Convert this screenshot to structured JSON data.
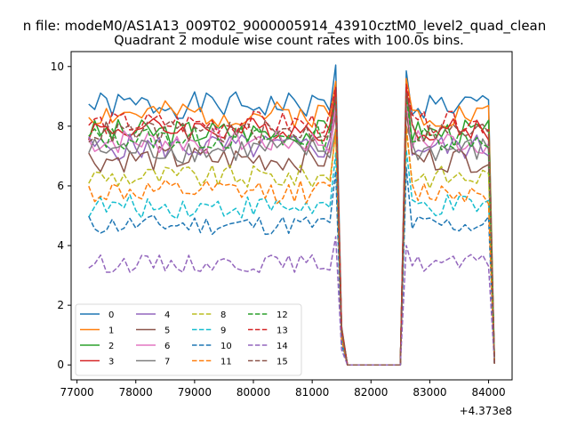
{
  "figure": {
    "suptitle": "n file: modeM0/AS1A13_009T02_9000005914_43910cztM0_level2_quad_clean",
    "offset_label": "+4.373e8"
  },
  "chart_data": {
    "type": "line",
    "title": "Quadrant 2 module wise count rates with 100.0s bins.",
    "xlabel": "",
    "ylabel": "",
    "xlim": [
      76900,
      84400
    ],
    "ylim": [
      -0.5,
      10.5
    ],
    "x_ticks": [
      77000,
      78000,
      79000,
      80000,
      81000,
      82000,
      83000,
      84000
    ],
    "y_ticks": [
      0,
      2,
      4,
      6,
      8,
      10
    ],
    "x_offset": 437300000,
    "grid": false,
    "legend": {
      "placement": "lower-left",
      "columns": 4
    },
    "x_start": 77200,
    "x_step": 100,
    "series": [
      {
        "name": "0",
        "color": "#1f77b4",
        "dash": "solid",
        "level": 8.7,
        "peak1": 10.05,
        "peak2": 9.85,
        "noise": 0.45,
        "seed": 1
      },
      {
        "name": "1",
        "color": "#ff7f0e",
        "dash": "solid",
        "level": 8.4,
        "peak1": 9.5,
        "peak2": 9.6,
        "noise": 0.45,
        "seed": 2
      },
      {
        "name": "2",
        "color": "#2ca02c",
        "dash": "solid",
        "level": 7.8,
        "peak1": 9.1,
        "peak2": 9.2,
        "noise": 0.45,
        "seed": 3
      },
      {
        "name": "3",
        "color": "#d62728",
        "dash": "solid",
        "level": 7.9,
        "peak1": 9.2,
        "peak2": 9.3,
        "noise": 0.4,
        "seed": 4
      },
      {
        "name": "4",
        "color": "#9467bd",
        "dash": "solid",
        "level": 7.3,
        "peak1": 8.8,
        "peak2": 8.9,
        "noise": 0.45,
        "seed": 5
      },
      {
        "name": "5",
        "color": "#8c564b",
        "dash": "solid",
        "level": 6.9,
        "peak1": 8.4,
        "peak2": 8.5,
        "noise": 0.45,
        "seed": 6
      },
      {
        "name": "6",
        "color": "#e377c2",
        "dash": "solid",
        "level": 7.5,
        "peak1": 8.7,
        "peak2": 8.8,
        "noise": 0.45,
        "seed": 7
      },
      {
        "name": "7",
        "color": "#7f7f7f",
        "dash": "solid",
        "level": 7.2,
        "peak1": 7.9,
        "peak2": 8.0,
        "noise": 0.45,
        "seed": 8
      },
      {
        "name": "8",
        "color": "#bcbd22",
        "dash": "dashed",
        "level": 6.3,
        "peak1": 7.8,
        "peak2": 7.9,
        "noise": 0.4,
        "seed": 9
      },
      {
        "name": "9",
        "color": "#17becf",
        "dash": "dashed",
        "level": 5.3,
        "peak1": 7.1,
        "peak2": 7.2,
        "noise": 0.4,
        "seed": 10
      },
      {
        "name": "10",
        "color": "#1f77b4",
        "dash": "dashed",
        "level": 4.7,
        "peak1": 6.5,
        "peak2": 6.6,
        "noise": 0.35,
        "seed": 11
      },
      {
        "name": "11",
        "color": "#ff7f0e",
        "dash": "dashed",
        "level": 5.8,
        "peak1": 7.9,
        "peak2": 8.0,
        "noise": 0.4,
        "seed": 12
      },
      {
        "name": "12",
        "color": "#2ca02c",
        "dash": "dashed",
        "level": 7.6,
        "peak1": 8.9,
        "peak2": 9.0,
        "noise": 0.4,
        "seed": 13
      },
      {
        "name": "13",
        "color": "#d62728",
        "dash": "dashed",
        "level": 8.1,
        "peak1": 9.3,
        "peak2": 9.4,
        "noise": 0.4,
        "seed": 14
      },
      {
        "name": "14",
        "color": "#9467bd",
        "dash": "dashed",
        "level": 3.4,
        "peak1": 4.3,
        "peak2": 4.0,
        "noise": 0.3,
        "seed": 15
      },
      {
        "name": "15",
        "color": "#8c564b",
        "dash": "dashed",
        "level": 7.8,
        "peak1": 9.0,
        "peak2": 9.1,
        "noise": 0.4,
        "seed": 16
      }
    ],
    "shape": {
      "gap_start": 81600,
      "gap_end": 82500,
      "seg1_end": 81400,
      "drop_point": 81500,
      "seg2_start": 82600,
      "seg2_end": 84000,
      "end_drop": 84100
    }
  }
}
